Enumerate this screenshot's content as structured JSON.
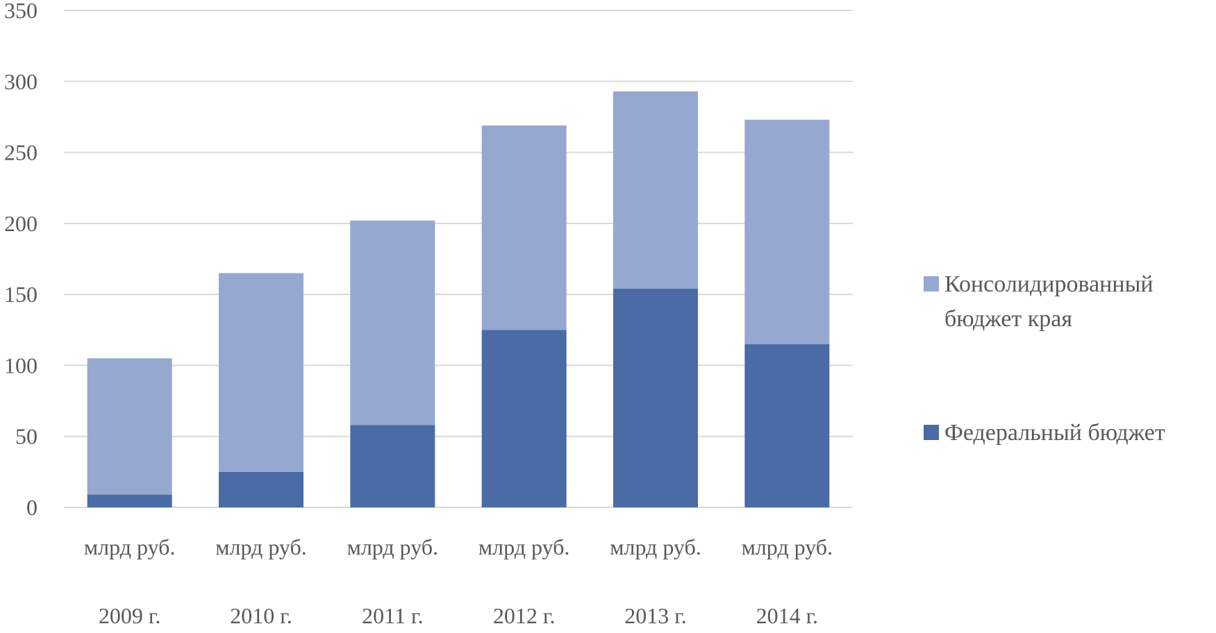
{
  "chart_data": {
    "type": "bar",
    "stacked": true,
    "categories": [
      [
        "млрд руб.",
        "2009 г."
      ],
      [
        "млрд руб.",
        "2010 г."
      ],
      [
        "млрд руб.",
        "2011 г."
      ],
      [
        "млрд руб.",
        "2012 г."
      ],
      [
        "млрд руб.",
        "2013 г."
      ],
      [
        "млрд руб.",
        "2014 г."
      ]
    ],
    "series": [
      {
        "name": "Федеральный бюджет",
        "color": "#4a6ba6",
        "values": [
          9,
          25,
          58,
          125,
          154,
          115
        ]
      },
      {
        "name": "Консолидированный бюджет края",
        "color": "#95a8d0",
        "values": [
          96,
          140,
          144,
          144,
          139,
          158
        ]
      }
    ],
    "ylim": [
      0,
      350
    ],
    "yticks": [
      "0",
      "50",
      "100",
      "150",
      "200",
      "250",
      "300",
      "350"
    ],
    "grid": true,
    "legend_position": "right",
    "legend": [
      {
        "lines": [
          "Консолидированный",
          "бюджет края"
        ],
        "series": 1
      },
      {
        "lines": [
          "Федеральный бюджет"
        ],
        "series": 0
      }
    ]
  }
}
